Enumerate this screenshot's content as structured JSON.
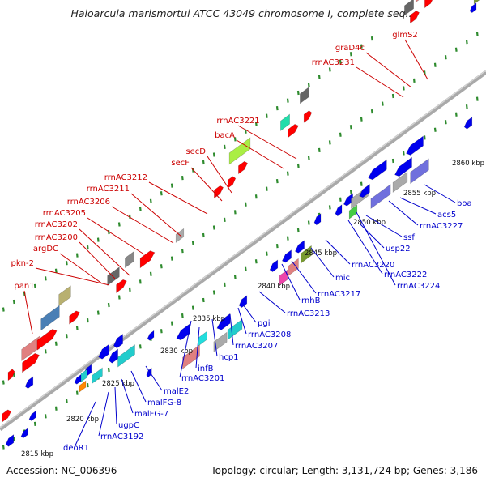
{
  "title": "Haloarcula marismortui ATCC 43049 chromosome I, complete seq...",
  "accession": "Accession: NC_006396",
  "summary": "Topology: circular; Length: 3,131,724 bp; Genes: 3,186",
  "colors": {
    "backbone": "#a9a9a9",
    "tick": "#2e8b2e",
    "forward_label": "#cc0000",
    "reverse_label": "#0000cc",
    "forward_feature": "#ff0000",
    "reverse_feature": "#0000ee"
  },
  "scale_labels": [
    "2815 kbp",
    "2820 kbp",
    "2825 kbp",
    "2830 kbp",
    "2835 kbp",
    "2840 kbp",
    "2845 kbp",
    "2850 kbp",
    "2855 kbp",
    "2860 kbp"
  ],
  "forward_genes": [
    "pan1",
    "pkn-2",
    "argDC",
    "rrnAC3200",
    "rrnAC3202",
    "rrnAC3205",
    "rrnAC3206",
    "rrnAC3211",
    "rrnAC3212",
    "secF",
    "secD",
    "bacA",
    "rrnAC3221",
    "rrnAC3231",
    "graD4c",
    "glmS2"
  ],
  "reverse_genes": [
    "deoR1",
    "rrnAC3192",
    "ugpC",
    "malFG-7",
    "malFG-8",
    "malE2",
    "rrnAC3201",
    "infB",
    "hcp1",
    "rrnAC3207",
    "rrnAC3208",
    "pgi",
    "rrnAC3213",
    "rnhB",
    "rrnAC3217",
    "mic",
    "rrnAC3220",
    "rrnAC3222",
    "rrnAC3224",
    "usp22",
    "ssf",
    "rrnAC3227",
    "acs5",
    "boa"
  ]
}
